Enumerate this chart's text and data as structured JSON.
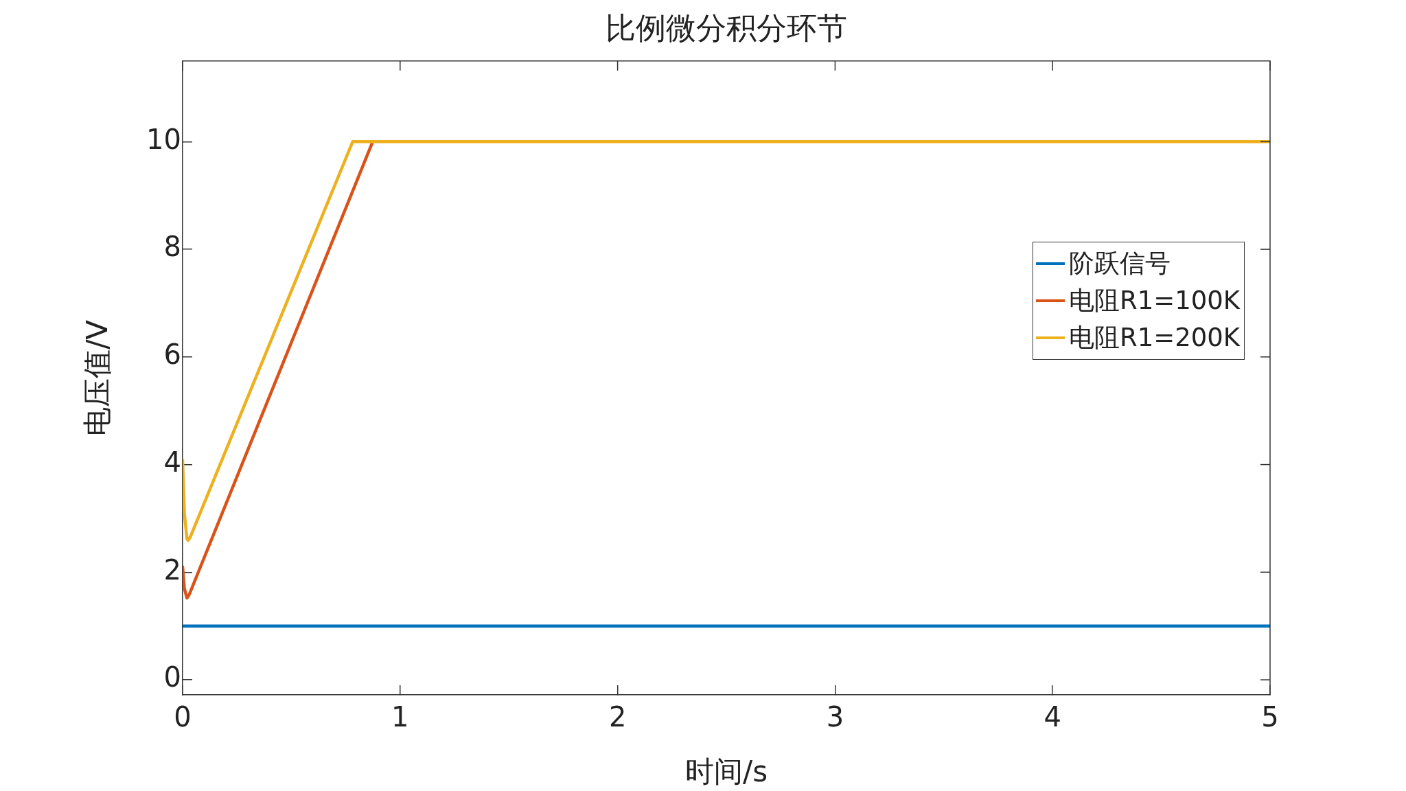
{
  "chart_data": {
    "type": "line",
    "title": "比例微分积分环节",
    "xlabel": "时间/s",
    "ylabel": "电压值/V",
    "xlim": [
      0,
      5
    ],
    "xticks": [
      0,
      1,
      2,
      3,
      4,
      5
    ],
    "ylim": [
      -0.28,
      11.5
    ],
    "yticks": [
      0,
      2,
      4,
      6,
      8,
      10
    ],
    "grid": false,
    "legend": "right",
    "line_style": "solid",
    "marker": "none",
    "series": [
      {
        "name": "阶跃信号",
        "color": "#0072bd",
        "x": [
          0,
          5
        ],
        "values": [
          1,
          1
        ]
      },
      {
        "name": "电阻R1=100K",
        "color": "#d95319",
        "x": [
          0,
          0.008,
          0.02,
          0.03,
          0.874
        ],
        "values": [
          2.1,
          1.7,
          1.52,
          1.58,
          10
        ]
      },
      {
        "name": "电阻R1=200K",
        "color": "#edb120",
        "x": [
          0,
          0.008,
          0.02,
          0.025,
          0.035,
          0.782,
          5
        ],
        "values": [
          4.08,
          3.1,
          2.62,
          2.59,
          2.65,
          10,
          10
        ]
      }
    ]
  }
}
